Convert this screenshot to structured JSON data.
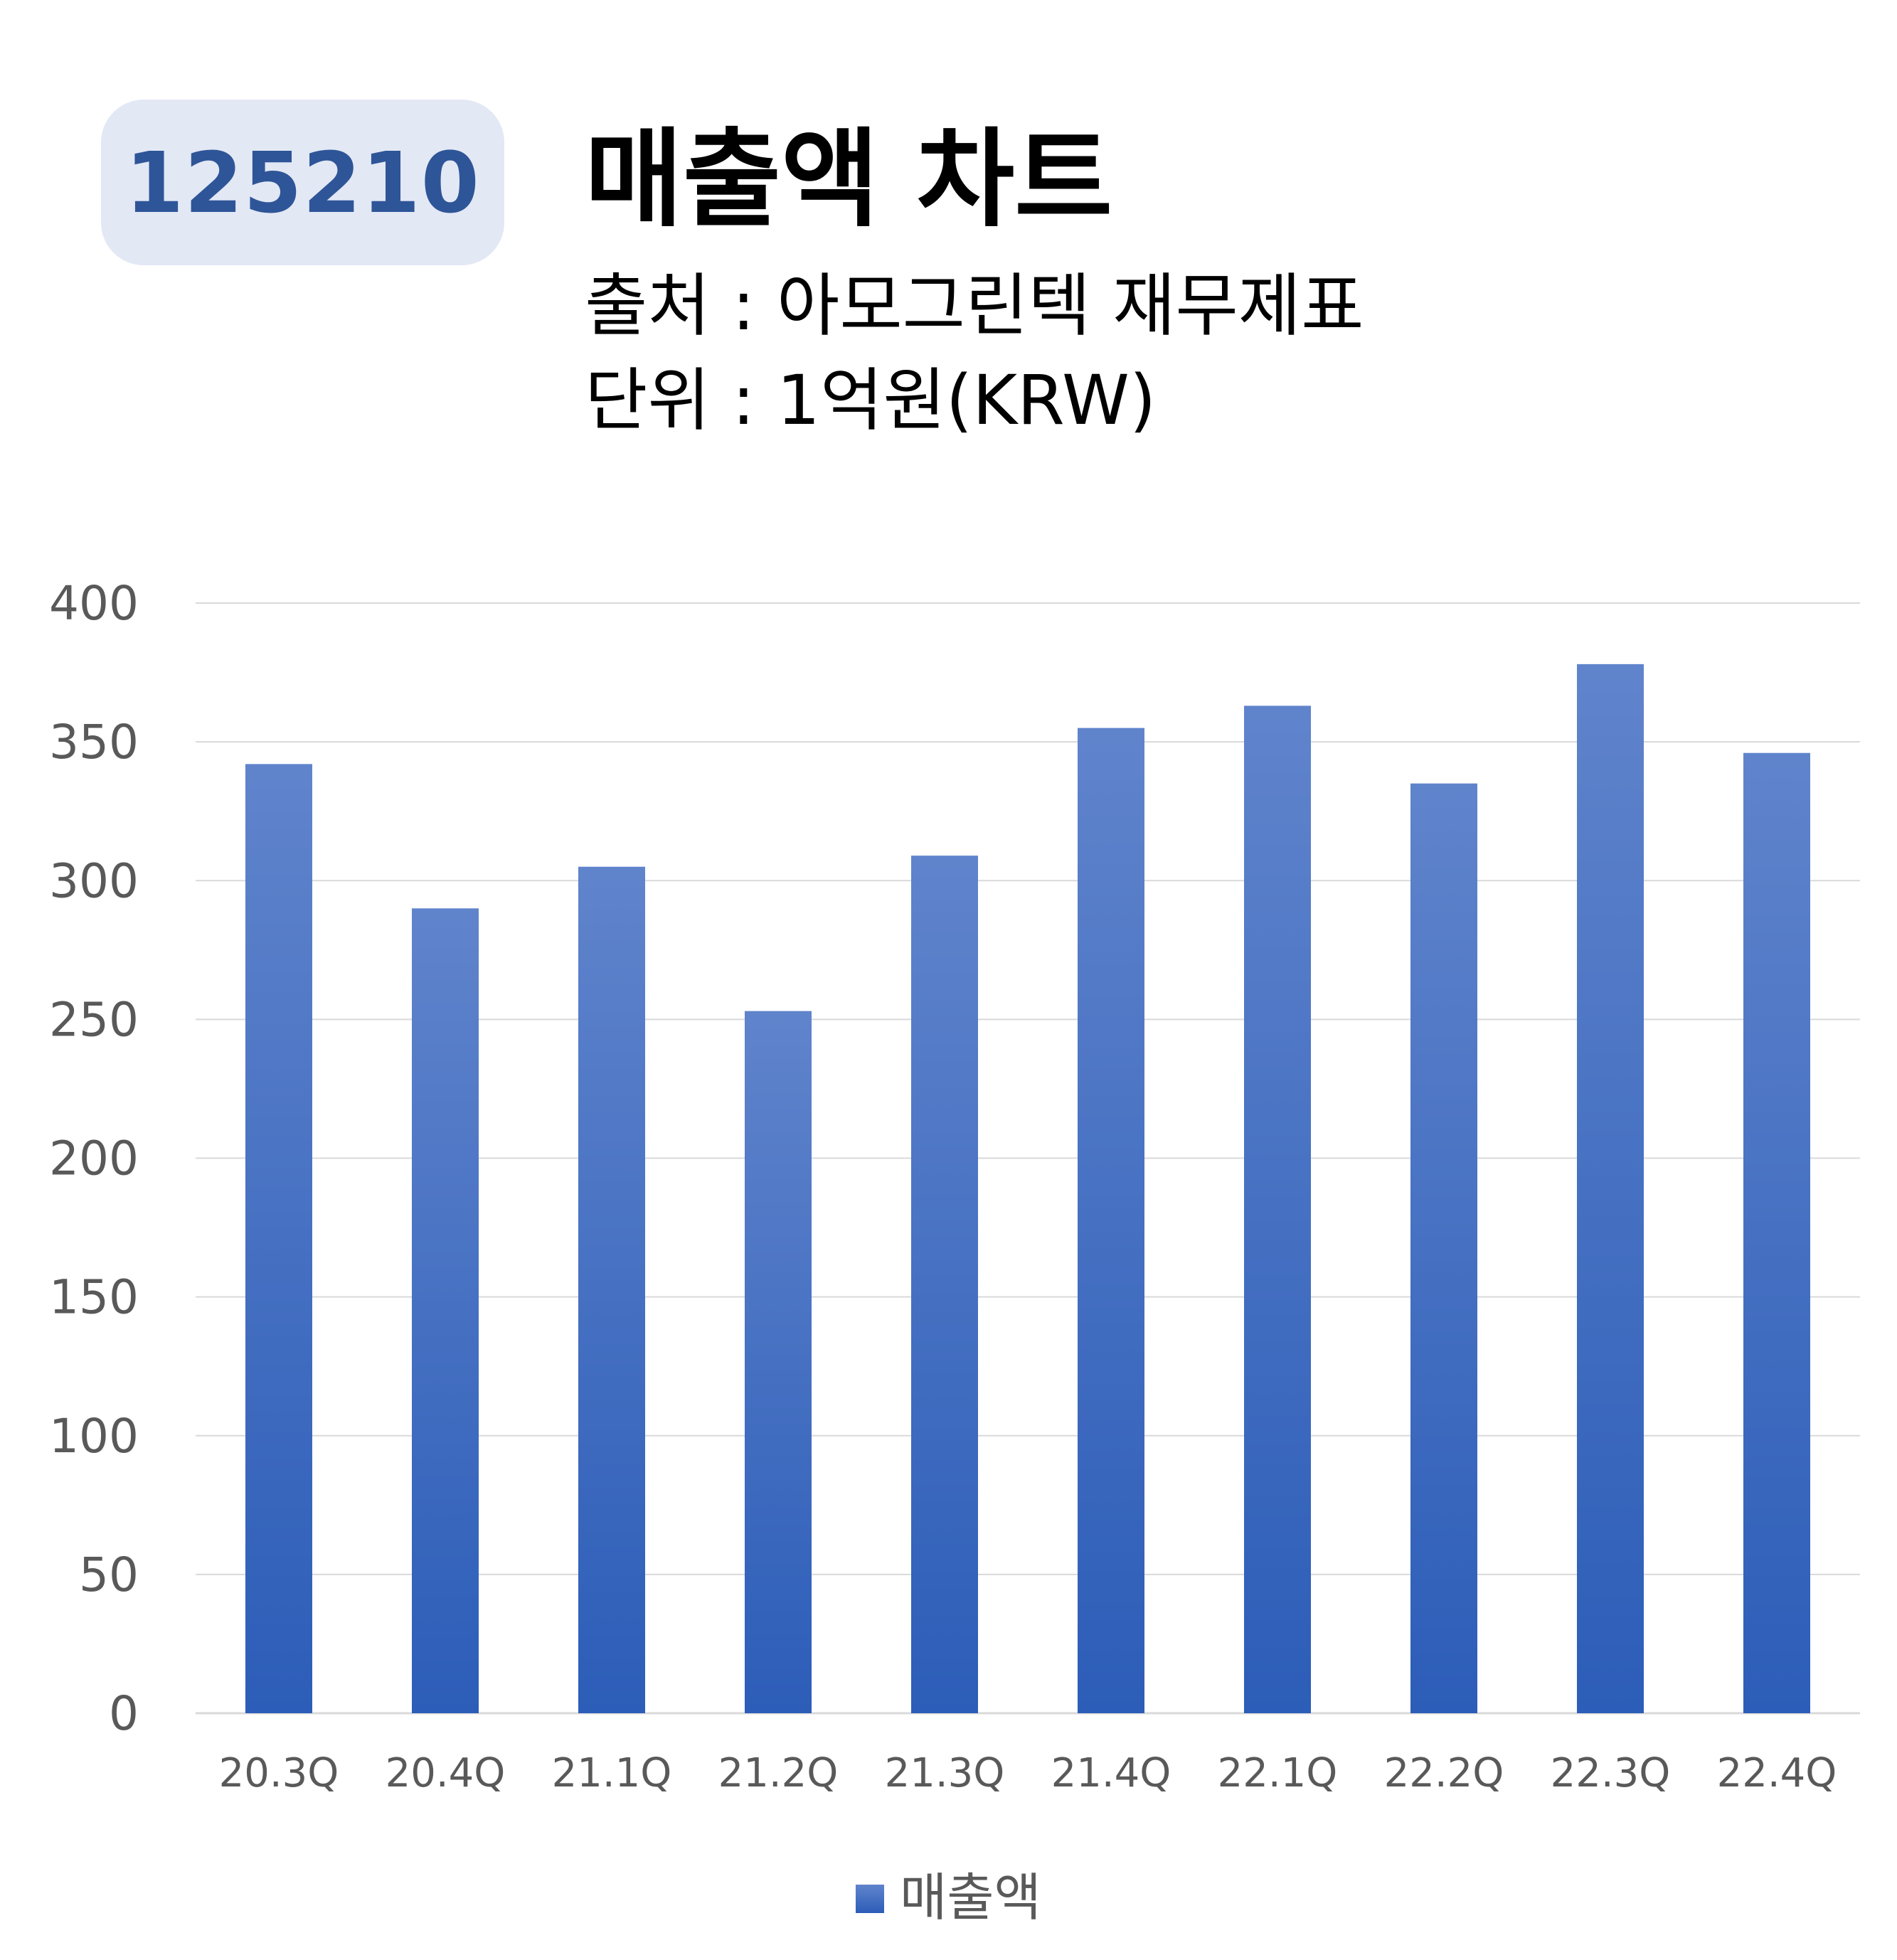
{
  "header": {
    "code": "125210",
    "title": "매출액 차트",
    "source": "출처 : 아모그린텍 재무제표",
    "unit": "단위 : 1억원(KRW)"
  },
  "colors": {
    "bar_top": "#6084cc",
    "bar_bottom": "#2c5db8",
    "grid": "#d9d9d9",
    "badge_bg": "#e3e8f5",
    "badge_text": "#2e5597"
  },
  "chart_data": {
    "type": "bar",
    "categories": [
      "20.3Q",
      "20.4Q",
      "21.1Q",
      "21.2Q",
      "21.3Q",
      "21.4Q",
      "22.1Q",
      "22.2Q",
      "22.3Q",
      "22.4Q"
    ],
    "series": [
      {
        "name": "매출액",
        "values": [
          342,
          290,
          305,
          253,
          309,
          355,
          363,
          335,
          378,
          346
        ]
      }
    ],
    "ylim": [
      0,
      400
    ],
    "yticks": [
      0,
      50,
      100,
      150,
      200,
      250,
      300,
      350,
      400
    ],
    "grid": true,
    "legend": "bottom"
  }
}
